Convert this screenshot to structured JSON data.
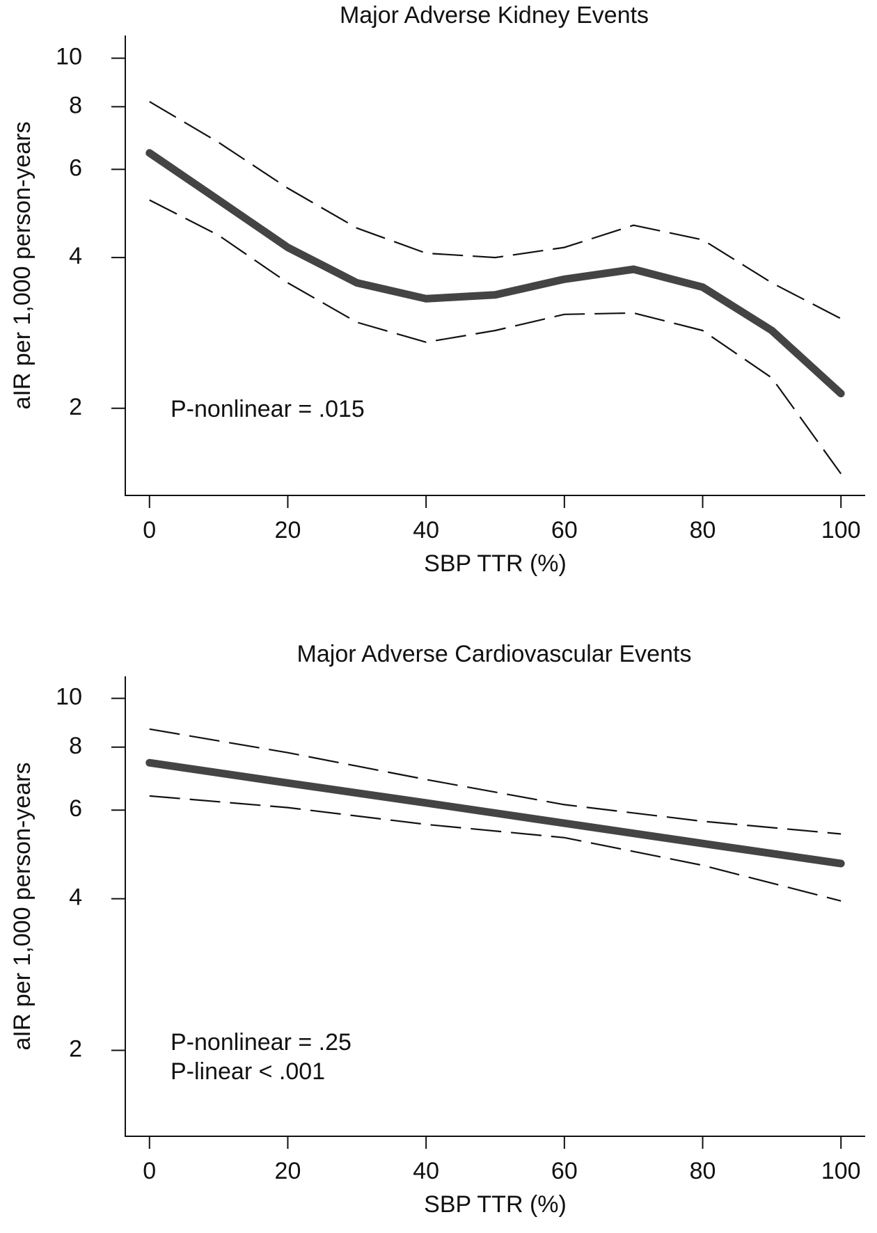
{
  "chart_data": [
    {
      "type": "line",
      "title": "Major Adverse Kidney Events",
      "x_label": "SBP TTR (%)",
      "y_label": "aIR per 1,000 person-years",
      "annotations": [
        "P-nonlinear = .015"
      ],
      "x": [
        0,
        10,
        20,
        30,
        40,
        50,
        60,
        70,
        80,
        90,
        100
      ],
      "series": [
        {
          "color": "#444444",
          "style": "solid",
          "values": [
            6.47,
            5.21,
            4.19,
            3.56,
            3.31,
            3.37,
            3.62,
            3.79,
            3.49,
            2.86,
            2.14
          ]
        },
        {
          "color": "#111111",
          "style": "dashed",
          "values": [
            8.19,
            6.79,
            5.5,
            4.58,
            4.08,
            4.0,
            4.19,
            4.64,
            4.34,
            3.56,
            3.02
          ]
        },
        {
          "color": "#111111",
          "style": "dashed",
          "values": [
            5.21,
            4.43,
            3.56,
            2.97,
            2.71,
            2.86,
            3.08,
            3.1,
            2.86,
            2.3,
            1.48
          ]
        }
      ],
      "xlim": [
        -3.5,
        103.5
      ],
      "xticks": [
        0,
        20,
        40,
        60,
        80,
        100
      ],
      "ylim": [
        1.34,
        11.1
      ],
      "yticks": [
        2,
        4,
        6,
        8,
        10
      ],
      "log_scale": true
    },
    {
      "type": "line",
      "title": "Major Adverse Cardiovascular Events",
      "x_label": "SBP TTR (%)",
      "y_label": "aIR per 1,000 person-years",
      "annotations": [
        "P-nonlinear = .25",
        "P-linear < .001"
      ],
      "x": [
        0,
        20,
        40,
        60,
        80,
        100
      ],
      "series": [
        {
          "color": "#444444",
          "style": "solid",
          "values": [
            7.45,
            6.79,
            6.2,
            5.65,
            5.15,
            4.7
          ]
        },
        {
          "color": "#111111",
          "style": "dashed",
          "values": [
            8.69,
            7.8,
            6.9,
            6.15,
            5.7,
            5.38
          ]
        },
        {
          "color": "#111111",
          "style": "dashed",
          "values": [
            6.4,
            6.07,
            5.62,
            5.29,
            4.66,
            3.96
          ]
        }
      ],
      "xlim": [
        -3.5,
        103.5
      ],
      "xticks": [
        0,
        20,
        40,
        60,
        80,
        100
      ],
      "ylim": [
        1.35,
        11.06
      ],
      "yticks": [
        2,
        4,
        6,
        8,
        10
      ],
      "log_scale": true
    }
  ]
}
